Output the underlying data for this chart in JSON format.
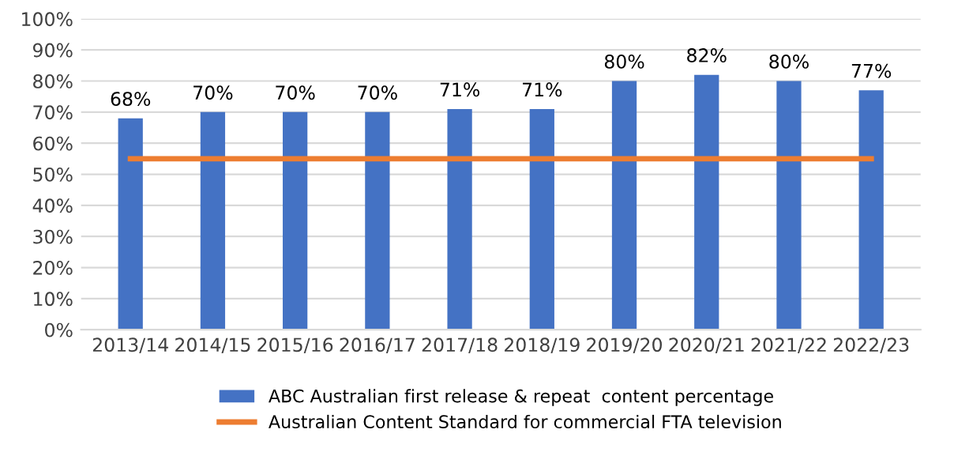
{
  "chart_data": {
    "type": "bar",
    "categories": [
      "2013/14",
      "2014/15",
      "2015/16",
      "2016/17",
      "2017/18",
      "2018/19",
      "2019/20",
      "2020/21",
      "2021/22",
      "2022/23"
    ],
    "series": [
      {
        "name": "ABC Australian first release & repeat  content percentage",
        "color": "#4472c4",
        "values": [
          68,
          70,
          70,
          70,
          71,
          71,
          80,
          82,
          80,
          77
        ],
        "value_labels": [
          "68%",
          "70%",
          "70%",
          "70%",
          "71%",
          "71%",
          "80%",
          "82%",
          "80%",
          "77%"
        ]
      },
      {
        "name": "Australian Content Standard for commercial FTA television",
        "type": "line",
        "color": "#ed7d31",
        "values": [
          55,
          55,
          55,
          55,
          55,
          55,
          55,
          55,
          55,
          55
        ]
      }
    ],
    "ylim": [
      0,
      100
    ],
    "yticks": [
      {
        "value": 0,
        "label": "0%"
      },
      {
        "value": 10,
        "label": "10%"
      },
      {
        "value": 20,
        "label": "20%"
      },
      {
        "value": 30,
        "label": "30%"
      },
      {
        "value": 40,
        "label": "40%"
      },
      {
        "value": 50,
        "label": "50%"
      },
      {
        "value": 60,
        "label": "60%"
      },
      {
        "value": 70,
        "label": "70%"
      },
      {
        "value": 80,
        "label": "80%"
      },
      {
        "value": 90,
        "label": "90%"
      },
      {
        "value": 100,
        "label": "100%"
      }
    ],
    "grid": "y",
    "legend": "bottom",
    "marker": "none",
    "line_style": "solid"
  }
}
